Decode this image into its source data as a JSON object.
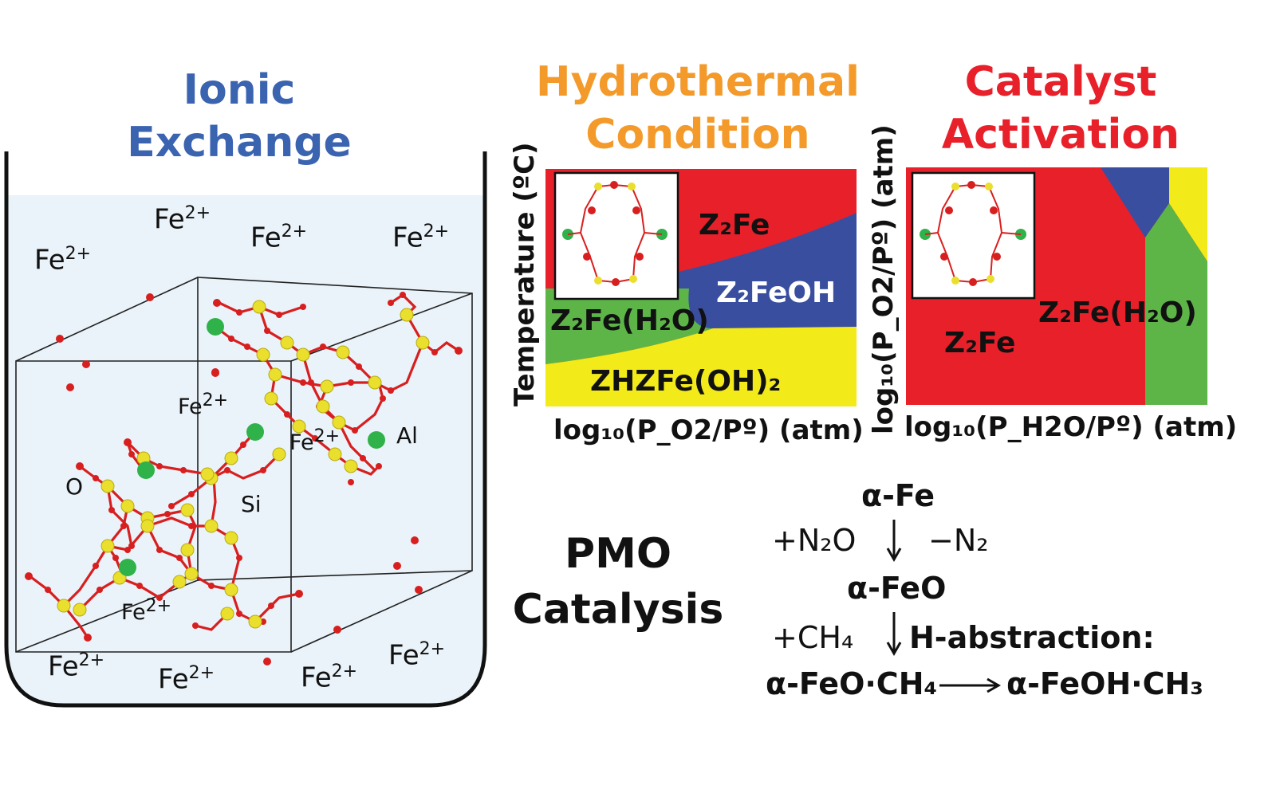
{
  "left_panel": {
    "title": [
      "Ionic",
      "Exchange"
    ],
    "ion_label": "Fe",
    "ion_charge": "2+",
    "atom_labels": {
      "oxygen": "O",
      "silicon": "Si",
      "aluminum": "Al"
    }
  },
  "hydrothermal": {
    "title": [
      "Hydrothermal",
      "Condition"
    ],
    "phases": {
      "z2fe": "Z₂Fe",
      "z2feoh": "Z₂FeOH",
      "z2feh2o": "Z₂Fe(H₂O)",
      "zhzfeoh2": "ZHZFe(OH)₂"
    },
    "y_axis": "Temperature (ºC)",
    "x_axis": "log₁₀(P_O2/Pº)  (atm)"
  },
  "activation": {
    "title": [
      "Catalyst",
      "Activation"
    ],
    "phases": {
      "z2fe": "Z₂Fe",
      "z2feh2o": "Z₂Fe(H₂O)"
    },
    "y_axis": "log₁₀(P_O2/Pº)  (atm)",
    "x_axis": "log₁₀(P_H2O/Pº)  (atm)"
  },
  "pmo": {
    "title": [
      "PMO",
      "Catalysis"
    ],
    "steps": {
      "s1": "α-Fe",
      "r1_left": "+N₂O",
      "r1_right": "−N₂",
      "s2": "α-FeO",
      "r2_left": "+CH₄",
      "r2_right": "H-abstraction:",
      "s3_left": "α-FeO·CH₄",
      "s3_right": "α-FeOH·CH₃"
    }
  },
  "colors": {
    "red_phase": "#e8202a",
    "blue_phase": "#3a4ea0",
    "green_phase": "#5db548",
    "yellow_phase": "#f3ea1a",
    "oxygen_atom": "#d81f1f",
    "silicon_atom": "#e9df2c",
    "aluminum_atom": "#2fb24a"
  }
}
